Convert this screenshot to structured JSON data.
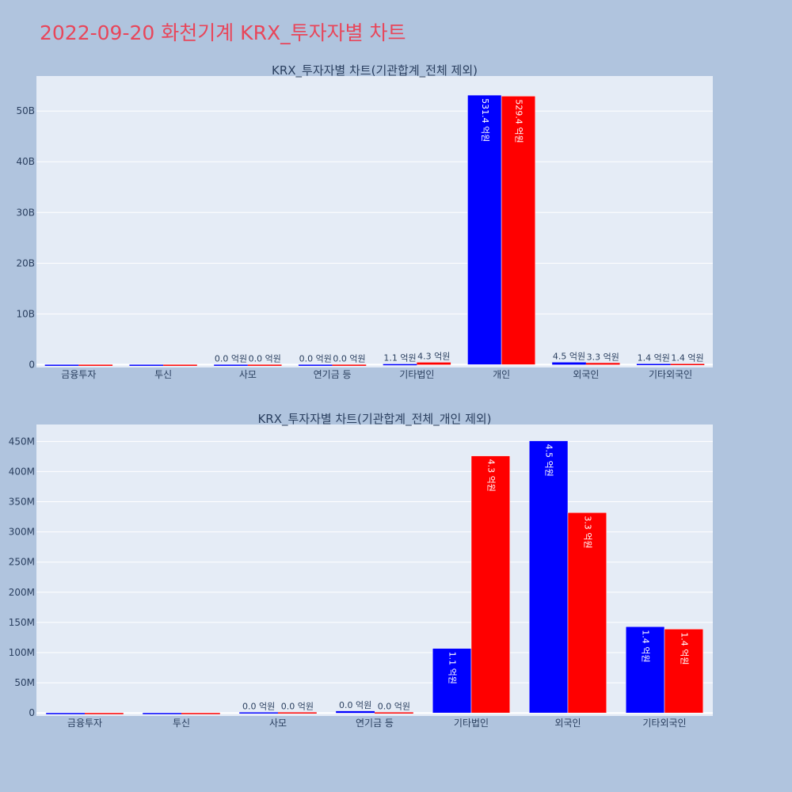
{
  "page_title": "2022-09-20 화천기계 KRX_투자자별 차트",
  "colors": {
    "background": "#b0c4de",
    "plot_bg": "#e5ecf6",
    "grid": "#ffffff",
    "text": "#2a3f5f",
    "title": "#e8465a",
    "series_buy": "#0000ff",
    "series_sell": "#ff0000"
  },
  "chart_data": [
    {
      "type": "bar",
      "title": "KRX_투자자별 차트(기관합계_전체 제외)",
      "xlabel": "",
      "ylabel": "",
      "categories": [
        "금융투자",
        "투신",
        "사모",
        "연기금 등",
        "기타법인",
        "개인",
        "외국인",
        "기타외국인"
      ],
      "ylim": [
        -560000000,
        56900000000
      ],
      "yticks": [
        0,
        10000000000,
        20000000000,
        30000000000,
        40000000000,
        50000000000
      ],
      "ytick_labels": [
        "0",
        "10B",
        "20B",
        "30B",
        "40B",
        "50B"
      ],
      "series": [
        {
          "values": [
            0,
            0,
            3000000,
            3000000,
            110000000,
            53140000000,
            450000000,
            140000000
          ],
          "labels": [
            "",
            "",
            "0.0 억원",
            "0.0 억원",
            "1.1 억원",
            "531.4 억원",
            "4.5 억원",
            "1.4 억원"
          ]
        },
        {
          "values": [
            0,
            0,
            3000000,
            3000000,
            430000000,
            52940000000,
            330000000,
            140000000
          ],
          "labels": [
            "",
            "",
            "0.0 억원",
            "0.0 억원",
            "4.3 억원",
            "529.4 억원",
            "3.3 억원",
            "1.4 억원"
          ]
        }
      ],
      "grid": true,
      "legend": "none"
    },
    {
      "type": "bar",
      "title": "KRX_투자자별 차트(기관합계_전체_개인 제외)",
      "xlabel": "",
      "ylabel": "",
      "categories": [
        "금융투자",
        "투신",
        "사모",
        "연기금 등",
        "기타법인",
        "외국인",
        "기타외국인"
      ],
      "ylim": [
        -5000000,
        478000000
      ],
      "yticks": [
        0,
        50000000,
        100000000,
        150000000,
        200000000,
        250000000,
        300000000,
        350000000,
        400000000,
        450000000
      ],
      "ytick_labels": [
        "0",
        "50M",
        "100M",
        "150M",
        "200M",
        "250M",
        "300M",
        "350M",
        "400M",
        "450M"
      ],
      "series": [
        {
          "values": [
            0,
            0,
            1000000,
            3000000,
            107000000,
            451000000,
            143000000
          ],
          "labels": [
            "",
            "",
            "0.0 억원",
            "0.0 억원",
            "1.1 억원",
            "4.5 억원",
            "1.4 억원"
          ]
        },
        {
          "values": [
            0,
            0,
            1000000,
            1000000,
            426000000,
            332000000,
            139000000
          ],
          "labels": [
            "",
            "",
            "0.0 억원",
            "0.0 억원",
            "4.3 억원",
            "3.3 억원",
            "1.4 억원"
          ]
        }
      ],
      "grid": true,
      "legend": "none"
    }
  ]
}
